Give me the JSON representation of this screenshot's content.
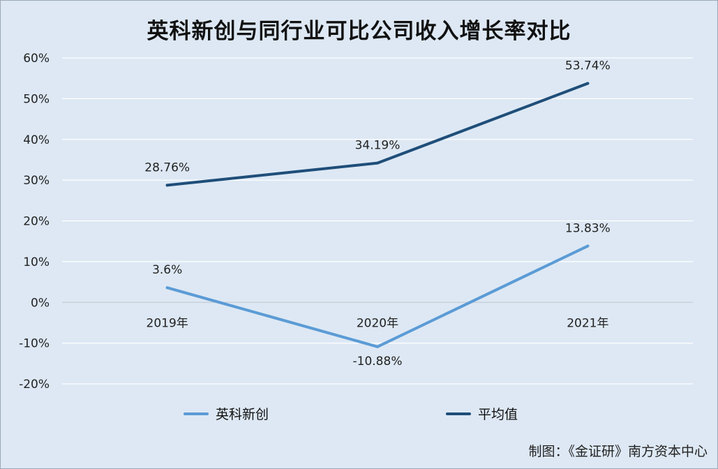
{
  "title": "英科新创与同行业可比公司收入增长率对比",
  "credit": "制图：《金证研》南方资本中心",
  "chart_data": {
    "type": "line",
    "title": "英科新创与同行业可比公司收入增长率对比",
    "categories": [
      "2019年",
      "2020年",
      "2021年"
    ],
    "ylim": [
      -20,
      60
    ],
    "yticks": [
      60,
      50,
      40,
      30,
      20,
      10,
      0,
      -10,
      -20
    ],
    "ytick_labels": [
      "60%",
      "50%",
      "40%",
      "30%",
      "20%",
      "10%",
      "0%",
      "-10%",
      "-20%"
    ],
    "grid": true,
    "legend_position": "bottom",
    "series": [
      {
        "name": "英科新创",
        "values": [
          3.6,
          -10.88,
          13.83
        ],
        "labels": [
          "3.6%",
          "-10.88%",
          "13.83%"
        ],
        "color": "#5b9bd5"
      },
      {
        "name": "平均值",
        "values": [
          28.76,
          34.19,
          53.74
        ],
        "labels": [
          "28.76%",
          "34.19%",
          "53.74%"
        ],
        "color": "#1f4e79"
      }
    ]
  }
}
